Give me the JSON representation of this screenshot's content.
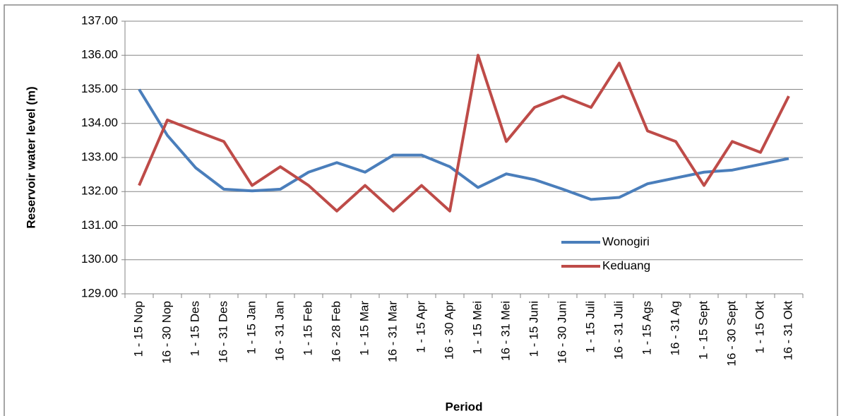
{
  "chart_data": {
    "type": "line",
    "xlabel": "Period",
    "ylabel": "Reservoir water level (m)",
    "categories": [
      "1 - 15 Nop",
      "16 - 30 Nop",
      "1 - 15 Des",
      "16 - 31 Des",
      "1 - 15 Jan",
      "16 - 31 Jan",
      "1 - 15 Feb",
      "16 - 28 Feb",
      "1 - 15 Mar",
      "16 - 31 Mar",
      "1 - 15 Apr",
      "16 - 30 Apr",
      "1 - 15 Mei",
      "16 - 31 Mei",
      "1 - 15 Juni",
      "16 - 30 Juni",
      "1 - 15 Juli",
      "16 - 31 Juli",
      "1 - 15 Ags",
      "16 - 31 Ag",
      "1 - 15 Sept",
      "16 - 30 Sept",
      "1 - 15 Okt",
      "16 - 31 Okt"
    ],
    "series": [
      {
        "name": "Wonogiri",
        "color": "#4a7ebb",
        "values": [
          135.0,
          133.65,
          132.7,
          132.07,
          132.02,
          132.07,
          132.57,
          132.85,
          132.57,
          133.07,
          133.07,
          132.73,
          132.12,
          132.52,
          132.35,
          132.07,
          131.77,
          131.83,
          132.23,
          132.4,
          132.57,
          132.63,
          132.8,
          132.97
        ]
      },
      {
        "name": "Keduang",
        "color": "#be4b48",
        "values": [
          132.18,
          134.1,
          133.78,
          133.47,
          132.18,
          132.73,
          132.18,
          131.43,
          132.18,
          131.43,
          132.18,
          131.43,
          136.0,
          133.47,
          134.47,
          134.8,
          134.47,
          135.77,
          133.78,
          133.47,
          132.18,
          133.47,
          133.15,
          134.8
        ]
      }
    ],
    "ylim": [
      129,
      137
    ],
    "yticks": [
      {
        "value": 129,
        "label": "129.00"
      },
      {
        "value": 130,
        "label": "130.00"
      },
      {
        "value": 131,
        "label": "131.00"
      },
      {
        "value": 132,
        "label": "132.00"
      },
      {
        "value": 133,
        "label": "133.00"
      },
      {
        "value": 134,
        "label": "134.00"
      },
      {
        "value": 135,
        "label": "135.00"
      },
      {
        "value": 136,
        "label": "136.00"
      },
      {
        "value": 137,
        "label": "137.00"
      }
    ],
    "grid": true,
    "legend": "inside-right"
  }
}
